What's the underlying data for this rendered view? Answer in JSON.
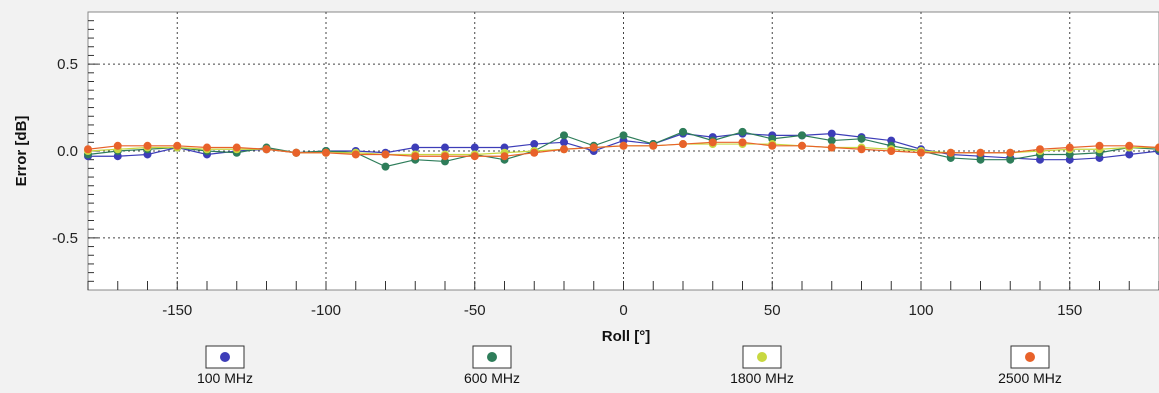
{
  "chart_data": {
    "type": "line",
    "title": "",
    "xlabel": "Roll [°]",
    "ylabel": "Error [dB]",
    "xlim": [
      -180,
      180
    ],
    "ylim": [
      -0.8,
      0.8
    ],
    "x_ticks": [
      -150,
      -100,
      -50,
      0,
      50,
      100,
      150
    ],
    "x_tick_labels": [
      "-150",
      "-100",
      "-50",
      "0",
      "50",
      "100",
      "150"
    ],
    "y_ticks": [
      0.5,
      0.0,
      -0.5
    ],
    "y_tick_labels": [
      "0.5",
      "0.0",
      "-0.5"
    ],
    "grid": true,
    "legend_position": "bottom",
    "x": [
      -180,
      -170,
      -160,
      -150,
      -140,
      -130,
      -120,
      -110,
      -100,
      -90,
      -80,
      -70,
      -60,
      -50,
      -40,
      -30,
      -20,
      -10,
      0,
      10,
      20,
      30,
      40,
      50,
      60,
      70,
      80,
      90,
      100,
      110,
      120,
      130,
      140,
      150,
      160,
      170,
      180
    ],
    "series": [
      {
        "name": "100 MHz",
        "color": "#3d3db8",
        "values": [
          -0.03,
          -0.03,
          -0.02,
          0.02,
          -0.02,
          0.0,
          0.01,
          -0.01,
          0.0,
          0.0,
          -0.01,
          0.02,
          0.02,
          0.02,
          0.02,
          0.04,
          0.05,
          0.0,
          0.06,
          0.04,
          0.1,
          0.08,
          0.1,
          0.09,
          0.09,
          0.1,
          0.08,
          0.06,
          0.01,
          -0.02,
          -0.03,
          -0.04,
          -0.05,
          -0.05,
          -0.04,
          -0.02,
          0.0
        ]
      },
      {
        "name": "600 MHz",
        "color": "#2e7d5a",
        "values": [
          -0.02,
          0.0,
          0.01,
          0.02,
          0.0,
          -0.01,
          0.02,
          -0.01,
          0.0,
          -0.01,
          -0.09,
          -0.05,
          -0.06,
          -0.02,
          -0.05,
          0.0,
          0.09,
          0.03,
          0.09,
          0.04,
          0.11,
          0.06,
          0.11,
          0.07,
          0.09,
          0.06,
          0.07,
          0.03,
          0.0,
          -0.04,
          -0.05,
          -0.05,
          -0.02,
          -0.02,
          -0.01,
          0.02,
          0.01
        ]
      },
      {
        "name": "1800 MHz",
        "color": "#c8d840",
        "values": [
          0.0,
          0.01,
          0.02,
          0.02,
          0.01,
          0.01,
          0.01,
          -0.01,
          -0.01,
          -0.01,
          -0.02,
          -0.02,
          -0.02,
          -0.02,
          -0.01,
          0.0,
          0.01,
          0.02,
          0.03,
          0.03,
          0.04,
          0.04,
          0.04,
          0.04,
          0.03,
          0.02,
          0.02,
          0.01,
          0.0,
          -0.01,
          -0.01,
          -0.01,
          0.0,
          0.01,
          0.01,
          0.02,
          0.02
        ]
      },
      {
        "name": "2500 MHz",
        "color": "#e8622a",
        "values": [
          0.01,
          0.03,
          0.03,
          0.03,
          0.02,
          0.02,
          0.01,
          -0.01,
          -0.01,
          -0.02,
          -0.02,
          -0.03,
          -0.03,
          -0.03,
          -0.03,
          -0.01,
          0.01,
          0.02,
          0.03,
          0.03,
          0.04,
          0.05,
          0.05,
          0.03,
          0.03,
          0.02,
          0.01,
          0.0,
          -0.01,
          -0.01,
          -0.01,
          -0.01,
          0.01,
          0.02,
          0.03,
          0.03,
          0.02
        ]
      }
    ]
  }
}
